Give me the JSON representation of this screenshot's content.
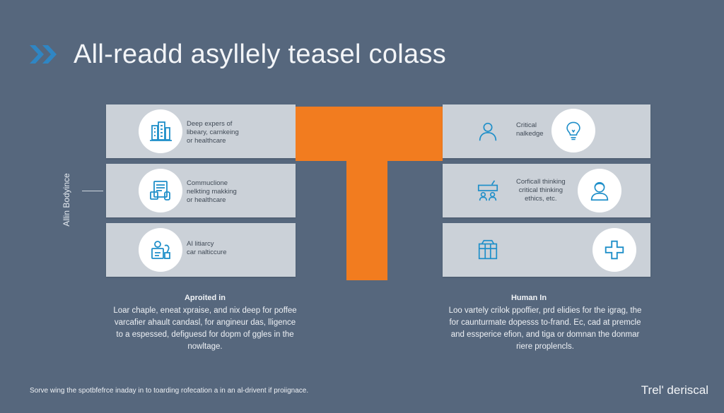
{
  "title": "All-readd asyllely teasel colass",
  "side_label": "Allin Bodyince",
  "left_cards": [
    {
      "icon": "building-icon",
      "lines": [
        "Deep expers of",
        "libeary, carnkeing",
        "or healthcare"
      ]
    },
    {
      "icon": "document-icon",
      "lines": [
        "Commuclione",
        "nelkting makking",
        "or healthcare"
      ]
    },
    {
      "icon": "worker-icon",
      "lines": [
        "AI litiarcy",
        "car nalticcure"
      ]
    }
  ],
  "right_cards": [
    {
      "icon": "person-icon",
      "circle_icon": "lightbulb-icon",
      "lines": [
        "Critical",
        "nalkedge"
      ]
    },
    {
      "icon": "team-icon",
      "circle_icon": "user-icon",
      "lines": [
        "Corficall thinking",
        "critical thinking",
        "ethics, etc."
      ]
    },
    {
      "icon": "box-icon",
      "circle_icon": "plus-icon",
      "lines": []
    }
  ],
  "left_column": {
    "heading": "Aproited in",
    "lines": [
      "Loar chaple, eneat xpraise, and nix deep for poffee",
      "varcafier ahault candasl, for angineur das, lligence",
      "to a espessed, defiguesd for dopm of ggles in the",
      "nowltage."
    ]
  },
  "right_column": {
    "heading": "Human In",
    "lines": [
      "Loo vartely crilok ppoffier, prd elidies for the igrag, the",
      "for caunturmate dopesss to-frand. Ec, cad at premcle",
      "and essperice efion, and tiga or domnan the donmar",
      "riere proplencls."
    ]
  },
  "footer": "Sorve wing the spotbfefrce inaday in to toarding rofecation a in an al-drivent if proiignace.",
  "brand": "Trel' deriscal",
  "colors": {
    "background": "#56677d",
    "accent": "#f27c1f",
    "card": "#cbd1d8",
    "icon": "#1f8fc9"
  }
}
